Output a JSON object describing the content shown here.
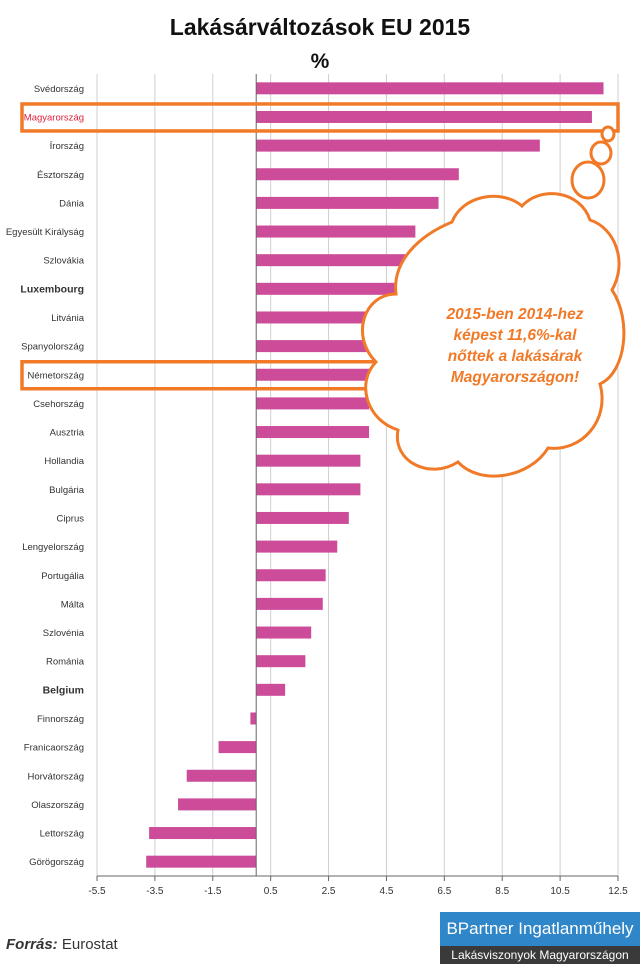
{
  "colors": {
    "bar": "#cc4c9a",
    "highlight": "#f07a28",
    "highlight_text": "#e0203c",
    "axis": "#666666",
    "grid": "#d0d0d0",
    "text": "#333333"
  },
  "callout": {
    "text": "2015-ben 2014-hez képest 11,6%-kal nőttek a lakásárak Magyarországon!"
  },
  "source": {
    "label": "Forrás:",
    "value": "Eurostat"
  },
  "logo": {
    "line1": "BPartner Ingatlanműhely",
    "line2": "Lakásviszonyok Magyarországon"
  },
  "chart_data": {
    "type": "bar",
    "orientation": "horizontal",
    "title": "Lakásárváltozások EU 2015",
    "unit": "%",
    "xlim": [
      -5.5,
      12.5
    ],
    "xticks": [
      "-5.5",
      "-3.5",
      "-1.5",
      "0.5",
      "2.5",
      "4.5",
      "6.5",
      "8.5",
      "10.5",
      "12.5"
    ],
    "grid": "vertical",
    "highlighted": [
      "Magyarország",
      "Németország"
    ],
    "bold_labels": [
      "Luxembourg",
      "Belgium"
    ],
    "categories": [
      "Svédország",
      "Magyarország",
      "Írország",
      "Észtország",
      "Dánia",
      "Egyesült Királyság",
      "Szlovákia",
      "Luxembourg",
      "Litvánia",
      "Spanyolország",
      "Németország",
      "Csehország",
      "Ausztria",
      "Hollandia",
      "Bulgária",
      "Ciprus",
      "Lengyelország",
      "Portugália",
      "Málta",
      "Szlovénia",
      "Románia",
      "Belgium",
      "Finnország",
      "Franicaország",
      "Horvátország",
      "Olaszország",
      "Lettország",
      "Görögország"
    ],
    "values": [
      12.0,
      11.6,
      9.8,
      7.0,
      6.3,
      5.5,
      5.5,
      5.1,
      4.6,
      4.1,
      4.1,
      3.9,
      3.9,
      3.6,
      3.6,
      3.2,
      2.8,
      2.4,
      2.3,
      1.9,
      1.7,
      1.0,
      -0.2,
      -1.3,
      -2.4,
      -2.7,
      -3.7,
      -3.8
    ]
  }
}
